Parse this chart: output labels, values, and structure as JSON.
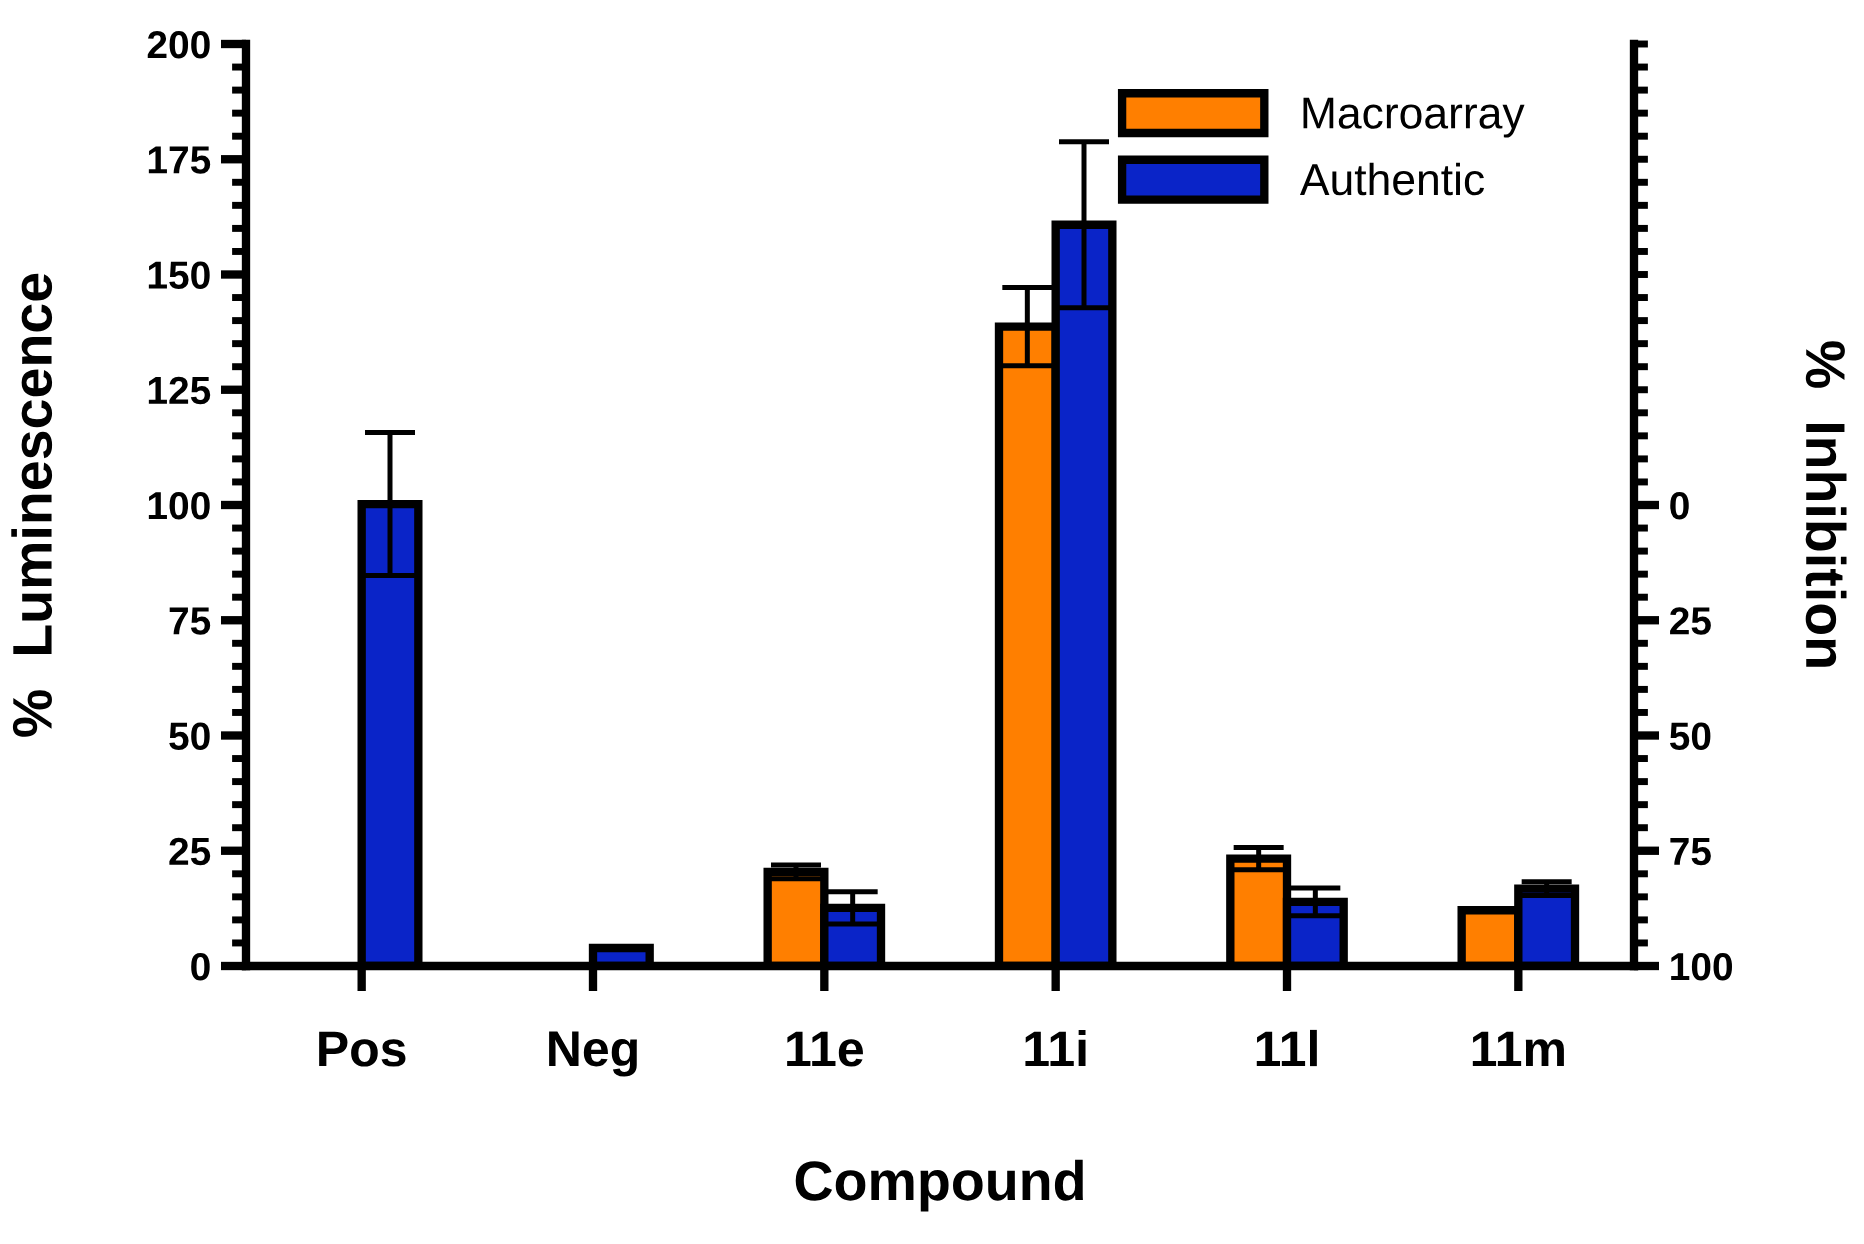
{
  "chart_data": {
    "type": "bar",
    "xlabel": "Compound",
    "ylabel": "%  Luminescence",
    "y2label": "%  Inhibition",
    "categories": [
      "Pos",
      "Neg",
      "11e",
      "11i",
      "11l",
      "11m"
    ],
    "series": [
      {
        "name": "Macroarray",
        "color": "#ff7f00",
        "values": [
          null,
          null,
          20.4,
          138.7,
          23.3,
          12.1
        ],
        "errors": [
          null,
          null,
          1.5,
          8.5,
          2.4,
          null
        ]
      },
      {
        "name": "Authentic",
        "color": "#0a24c8",
        "values": [
          100.2,
          3.9,
          12.6,
          160.8,
          13.9,
          16.8
        ],
        "errors": [
          15.5,
          null,
          3.5,
          18,
          3,
          1.5
        ]
      }
    ],
    "ylim": [
      0,
      200
    ],
    "yticks": [
      0,
      {
        "value": 5,
        "label": null
      },
      {
        "value": 10,
        "label": null
      },
      {
        "value": 15,
        "label": null
      },
      {
        "value": 20,
        "label": null
      },
      25,
      {
        "value": 30,
        "label": null
      },
      {
        "value": 35,
        "label": null
      },
      {
        "value": 40,
        "label": null
      },
      {
        "value": 45,
        "label": null
      },
      50,
      {
        "value": 55,
        "label": null
      },
      {
        "value": 60,
        "label": null
      },
      {
        "value": 65,
        "label": null
      },
      {
        "value": 70,
        "label": null
      },
      75,
      {
        "value": 80,
        "label": null
      },
      {
        "value": 85,
        "label": null
      },
      {
        "value": 90,
        "label": null
      },
      {
        "value": 95,
        "label": null
      },
      100,
      {
        "value": 105,
        "label": null
      },
      {
        "value": 110,
        "label": null
      },
      {
        "value": 115,
        "label": null
      },
      {
        "value": 120,
        "label": null
      },
      125,
      {
        "value": 130,
        "label": null
      },
      {
        "value": 135,
        "label": null
      },
      {
        "value": 140,
        "label": null
      },
      {
        "value": 145,
        "label": null
      },
      150,
      {
        "value": 155,
        "label": null
      },
      {
        "value": 160,
        "label": null
      },
      {
        "value": 165,
        "label": null
      },
      {
        "value": 170,
        "label": null
      },
      175,
      {
        "value": 180,
        "label": null
      },
      {
        "value": 185,
        "label": null
      },
      {
        "value": 190,
        "label": null
      },
      {
        "value": 195,
        "label": null
      },
      200
    ],
    "y2lim": [
      100,
      -100
    ],
    "y2ticks": [
      100,
      {
        "value": 95,
        "label": null
      },
      {
        "value": 90,
        "label": null
      },
      {
        "value": 85,
        "label": null
      },
      {
        "value": 80,
        "label": null
      },
      75,
      {
        "value": 70,
        "label": null
      },
      {
        "value": 65,
        "label": null
      },
      {
        "value": 60,
        "label": null
      },
      {
        "value": 55,
        "label": null
      },
      50,
      {
        "value": 45,
        "label": null
      },
      {
        "value": 40,
        "label": null
      },
      {
        "value": 35,
        "label": null
      },
      {
        "value": 30,
        "label": null
      },
      25,
      {
        "value": 20,
        "label": null
      },
      {
        "value": 15,
        "label": null
      },
      {
        "value": 10,
        "label": null
      },
      {
        "value": 5,
        "label": null
      },
      0,
      {
        "value": -5,
        "label": null
      },
      {
        "value": -10,
        "label": null
      },
      {
        "value": -15,
        "label": null
      },
      {
        "value": -20,
        "label": null
      },
      {
        "value": -25,
        "label": null
      },
      {
        "value": -30,
        "label": null
      },
      {
        "value": -35,
        "label": null
      },
      {
        "value": -40,
        "label": null
      },
      {
        "value": -45,
        "label": null
      },
      {
        "value": -50,
        "label": null
      },
      {
        "value": -55,
        "label": null
      },
      {
        "value": -60,
        "label": null
      },
      {
        "value": -65,
        "label": null
      },
      {
        "value": -70,
        "label": null
      },
      {
        "value": -75,
        "label": null
      },
      {
        "value": -80,
        "label": null
      },
      {
        "value": -85,
        "label": null
      },
      {
        "value": -90,
        "label": null
      },
      {
        "value": -95,
        "label": null
      },
      {
        "value": -100,
        "label": null
      }
    ],
    "grid": false,
    "legend": "top right"
  }
}
